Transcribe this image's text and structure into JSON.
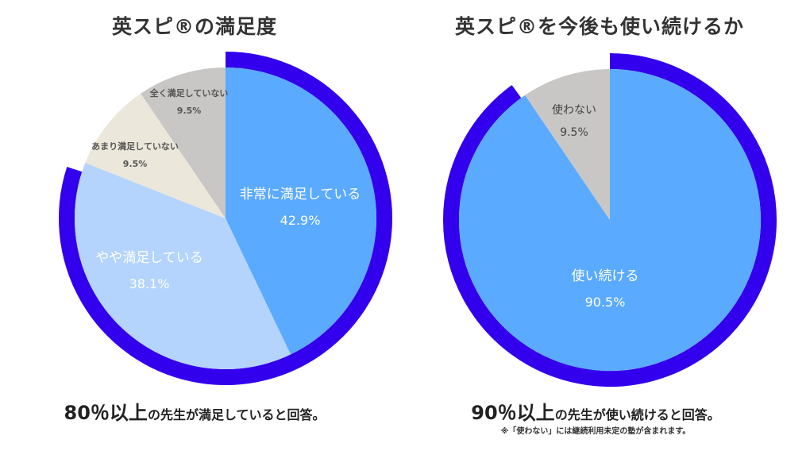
{
  "chart_data": [
    {
      "type": "pie",
      "title": "英スピ®の満足度",
      "slices": [
        {
          "label": "非常に満足している",
          "value": 42.9,
          "value_label": "42.9%",
          "color": "#5aaaff"
        },
        {
          "label": "やや満足している",
          "value": 38.1,
          "value_label": "38.1%",
          "color": "#b4d4fd"
        },
        {
          "label": "あまり満足していない",
          "value": 9.5,
          "value_label": "9.5%",
          "color": "#ebe7da"
        },
        {
          "label": "全く満足していない",
          "value": 9.5,
          "value_label": "9.5%",
          "color": "#c9c7c5"
        }
      ],
      "highlight_ring_percent": 80,
      "ring_color": "#3300ee"
    },
    {
      "type": "pie",
      "title": "英スピ®を今後も使い続けるか",
      "slices": [
        {
          "label": "使い続ける",
          "value": 90.5,
          "value_label": "90.5%",
          "color": "#5aaaff"
        },
        {
          "label": "使わない",
          "value": 9.5,
          "value_label": "9.5%",
          "color": "#c9c7c5"
        }
      ],
      "highlight_ring_percent": 90,
      "ring_color": "#3300ee"
    }
  ],
  "captions": {
    "left": {
      "big": "80％以上",
      "small": "の先生が満足していると回答。"
    },
    "right": {
      "big": "90％以上",
      "small": "の先生が使い続けると回答。"
    },
    "footnote": "※「使わない」には継続利用未定の塾が含まれます。"
  }
}
